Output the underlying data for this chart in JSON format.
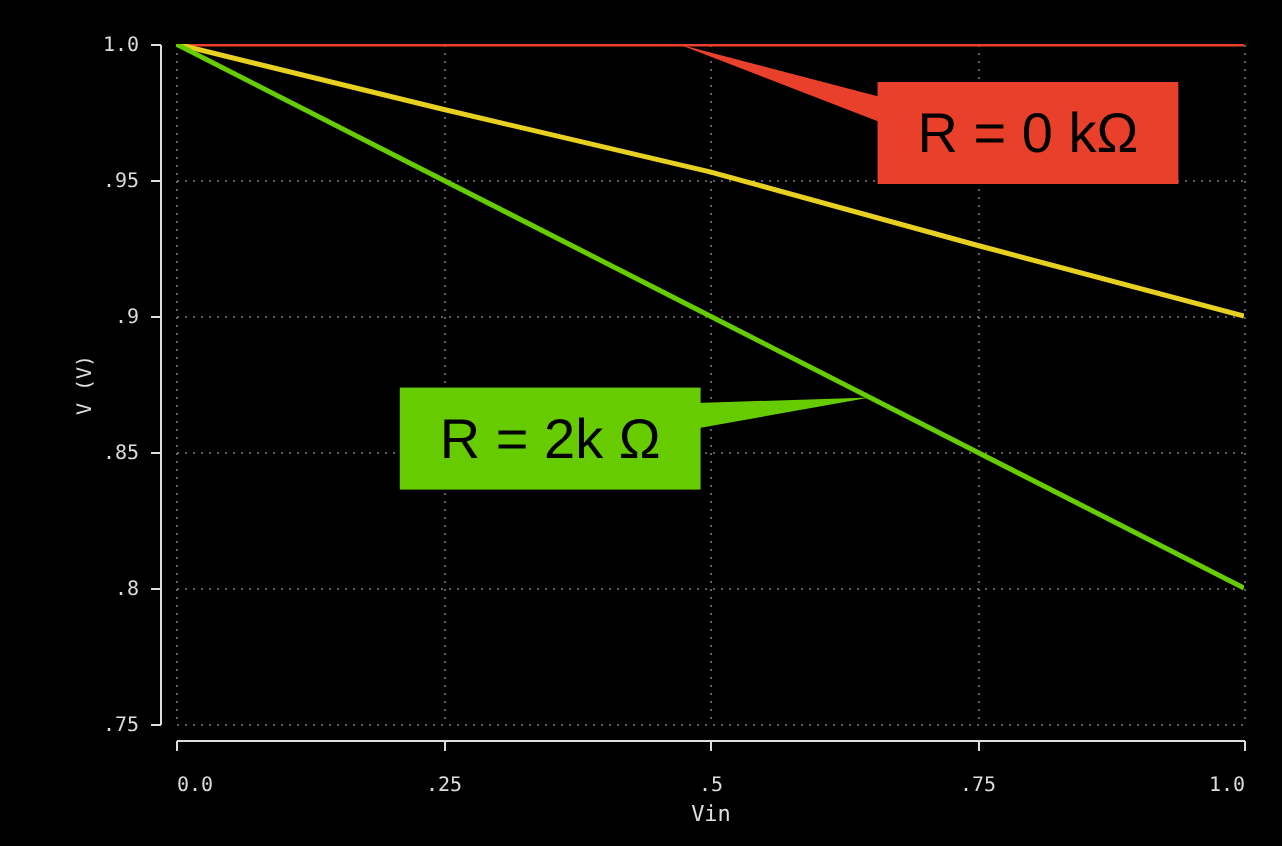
{
  "chart_data": {
    "type": "line",
    "xlabel": "Vin",
    "ylabel": "V (V)",
    "x": [
      0,
      0.25,
      0.5,
      0.75,
      1.0
    ],
    "series": [
      {
        "color": "#e8402a",
        "values": [
          1.0,
          1.0,
          1.0,
          1.0,
          1.0
        ]
      },
      {
        "color": "#e8d020",
        "values": [
          1.0,
          0.976,
          0.953,
          0.926,
          0.9
        ]
      },
      {
        "color": "#66cc00",
        "values": [
          1.0,
          0.95,
          0.9,
          0.85,
          0.8
        ]
      }
    ],
    "xlim": [
      0,
      1.0
    ],
    "ylim": [
      0.75,
      1.0
    ],
    "xticks": [
      {
        "value": 0,
        "label": "0.0"
      },
      {
        "value": 0.25,
        "label": ".25"
      },
      {
        "value": 0.5,
        "label": ".5"
      },
      {
        "value": 0.75,
        "label": ".75"
      },
      {
        "value": 1.0,
        "label": "1.0"
      }
    ],
    "yticks": [
      {
        "value": 0.75,
        "label": ".75"
      },
      {
        "value": 0.8,
        "label": ".8"
      },
      {
        "value": 0.85,
        "label": ".85"
      },
      {
        "value": 0.9,
        "label": ".9"
      },
      {
        "value": 0.95,
        "label": ".95"
      },
      {
        "value": 1.0,
        "label": "1.0"
      }
    ],
    "grid": true,
    "annotations": [
      {
        "text": "R = 0 kΩ",
        "x": 0.47,
        "y": 1.0
      },
      {
        "text": "R = 2k Ω",
        "x": 0.65,
        "y": 0.87
      }
    ]
  }
}
